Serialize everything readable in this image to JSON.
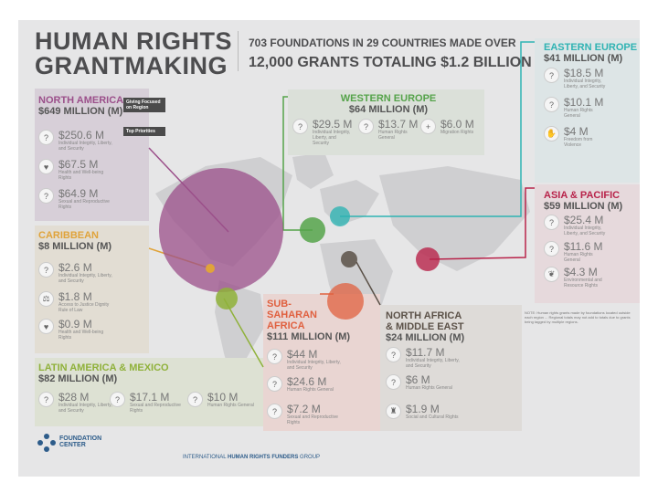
{
  "title": {
    "line1": "HUMAN RIGHTS",
    "line2": "GRANTMAKING"
  },
  "headline": {
    "line1": "703 FOUNDATIONS IN 29 COUNTRIES MADE OVER",
    "line2": "12,000 GRANTS TOTALING $1.2 BILLION"
  },
  "legend": {
    "focused": "Giving Focused on Region",
    "priorities": "Top Priorities"
  },
  "regions": {
    "north_america": {
      "name": "NORTH AMERICA",
      "amount": "$649 MILLION (M)",
      "color": "#9b4f8a",
      "items": [
        {
          "amount": "$250.6 M",
          "label": "Individual Integrity, Liberty, and Security",
          "icon": "?"
        },
        {
          "amount": "$67.5 M",
          "label": "Health and Well-being Rights",
          "icon": "♥"
        },
        {
          "amount": "$64.9 M",
          "label": "Sexual and Reproductive Rights",
          "icon": "?"
        }
      ]
    },
    "caribbean": {
      "name": "CARIBBEAN",
      "amount": "$8 MILLION (M)",
      "color": "#e0a33a",
      "items": [
        {
          "amount": "$2.6 M",
          "label": "Individual Integrity, Liberty, and Security",
          "icon": "?"
        },
        {
          "amount": "$1.8 M",
          "label": "Access to Justice Dignity Rule of Law",
          "icon": "⚖"
        },
        {
          "amount": "$0.9 M",
          "label": "Health and Well-being Rights",
          "icon": "♥"
        }
      ]
    },
    "latin_america": {
      "name": "LATIN AMERICA & MEXICO",
      "amount": "$82 MILLION (M)",
      "color": "#8fb13a",
      "items": [
        {
          "amount": "$28 M",
          "label": "Individual Integrity, Liberty, and Security",
          "icon": "?"
        },
        {
          "amount": "$17.1 M",
          "label": "Sexual and Reproductive Rights",
          "icon": "?"
        },
        {
          "amount": "$10 M",
          "label": "Human Rights General",
          "icon": "?"
        }
      ]
    },
    "western_europe": {
      "name": "WESTERN EUROPE",
      "amount": "$64 MILLION (M)",
      "color": "#55a34a",
      "items": [
        {
          "amount": "$29.5 M",
          "label": "Individual Integrity, Liberty, and Security",
          "icon": "?"
        },
        {
          "amount": "$13.7 M",
          "label": "Human Rights General",
          "icon": "?"
        },
        {
          "amount": "$6.0 M",
          "label": "Migration Rights",
          "icon": "+"
        }
      ]
    },
    "eastern_europe": {
      "name": "EASTERN EUROPE",
      "amount": "$41 MILLION (M)",
      "color": "#2fb3b3",
      "items": [
        {
          "amount": "$18.5 M",
          "label": "Individual Integrity, Liberty, and Security",
          "icon": "?"
        },
        {
          "amount": "$10.1 M",
          "label": "Human Rights General",
          "icon": "?"
        },
        {
          "amount": "$4 M",
          "label": "Freedom from Violence",
          "icon": "✋"
        }
      ]
    },
    "asia_pacific": {
      "name": "ASIA & PACIFIC",
      "amount": "$59 MILLION (M)",
      "color": "#b8234a",
      "items": [
        {
          "amount": "$25.4 M",
          "label": "Individual Integrity, Liberty, and Security",
          "icon": "?"
        },
        {
          "amount": "$11.6 M",
          "label": "Human Rights General",
          "icon": "?"
        },
        {
          "amount": "$4.3 M",
          "label": "Environmental and Resource Rights",
          "icon": "❦"
        }
      ]
    },
    "sub_saharan_africa": {
      "name1": "SUB-",
      "name2": "SAHARAN",
      "name3": "AFRICA",
      "amount": "$111 MILLION (M)",
      "color": "#e0603f",
      "items": [
        {
          "amount": "$44 M",
          "label": "Individual Integrity, Liberty, and Security",
          "icon": "?"
        },
        {
          "amount": "$24.6 M",
          "label": "Human Rights General",
          "icon": "?"
        },
        {
          "amount": "$7.2 M",
          "label": "Sexual and Reproductive Rights",
          "icon": "?"
        }
      ]
    },
    "north_africa": {
      "name1": "NORTH AFRICA",
      "name2": "& MIDDLE EAST",
      "amount": "$24 MILLION (M)",
      "color": "#5b5148",
      "items": [
        {
          "amount": "$11.7 M",
          "label": "Individual Integrity, Liberty, and Security",
          "icon": "?"
        },
        {
          "amount": "$6 M",
          "label": "Human Rights General",
          "icon": "?"
        },
        {
          "amount": "$1.9 M",
          "label": "Social and Cultural Rights",
          "icon": "♜"
        }
      ]
    }
  },
  "note": "NOTE: Human rights grants made by foundations located outside each region ... Regional totals may not add to totals due to grants being tagged by multiple regions.",
  "footer": {
    "fc_line1": "FOUNDATION",
    "fc_line2": "CENTER",
    "ihrfg_pre": "INTERNATIONAL",
    "ihrfg_bold": "HUMAN RIGHTS FUNDERS",
    "ihrfg_post": "GROUP"
  }
}
